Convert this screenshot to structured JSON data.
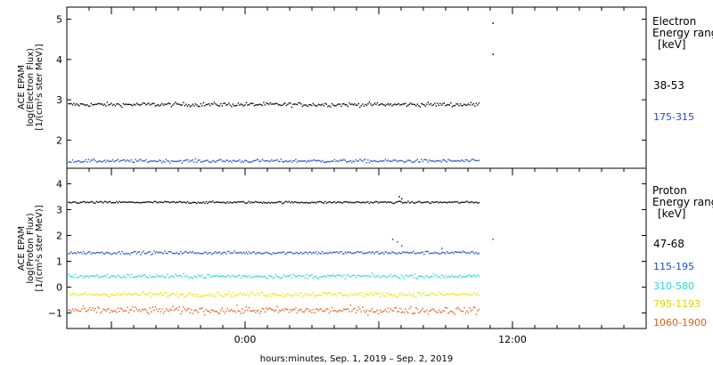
{
  "chart_data": [
    {
      "type": "scatter",
      "panel": "electron",
      "ylabel_lines": [
        "ACE EPAM",
        "log(Electron Flux)",
        "[1/(cm²s ster MeV)]"
      ],
      "ylim": [
        1.3,
        5.3
      ],
      "yticks": [
        2,
        3,
        4,
        5
      ],
      "legend_title": [
        "Electron",
        "Energy ranges",
        "[keV]"
      ],
      "series": [
        {
          "name": "38-53",
          "color": "#000000",
          "mean": 2.88,
          "noise": 0.05,
          "spikes": [
            [
              11.1,
              4.9
            ],
            [
              11.1,
              4.13
            ]
          ]
        },
        {
          "name": "175-315",
          "color": "#1f4fd0",
          "mean": 1.48,
          "noise": 0.04,
          "spikes": []
        }
      ]
    },
    {
      "type": "scatter",
      "panel": "proton",
      "ylabel_lines": [
        "ACE EPAM",
        "log(Proton Flux)",
        "[1/(cm²s ster MeV)]"
      ],
      "ylim": [
        -1.6,
        4.6
      ],
      "yticks": [
        -1,
        0,
        1,
        2,
        3,
        4
      ],
      "legend_title": [
        "Proton",
        "Energy ranges",
        "[keV]"
      ],
      "series": [
        {
          "name": "47-68",
          "color": "#000000",
          "mean": 3.28,
          "noise": 0.04,
          "spikes": [
            [
              6.9,
              3.5
            ],
            [
              7.0,
              3.42
            ]
          ]
        },
        {
          "name": "115-195",
          "color": "#1f4fd0",
          "mean": 1.33,
          "noise": 0.06,
          "spikes": [
            [
              6.6,
              1.85
            ],
            [
              6.8,
              1.75
            ],
            [
              7.0,
              1.6
            ],
            [
              11.1,
              1.85
            ],
            [
              8.8,
              1.5
            ]
          ]
        },
        {
          "name": "310-580",
          "color": "#28d8d8",
          "mean": 0.42,
          "noise": 0.08,
          "spikes": []
        },
        {
          "name": "795-1193",
          "color": "#e6e600",
          "mean": -0.28,
          "noise": 0.09,
          "spikes": []
        },
        {
          "name": "1060-1900",
          "color": "#e85a10",
          "mean": -0.9,
          "noise": 0.14,
          "spikes": []
        }
      ]
    }
  ],
  "xaxis": {
    "range_hours": [
      -8,
      18
    ],
    "data_end_hours": 10.5,
    "ticks": [
      {
        "label": "0:00",
        "hours": 0
      },
      {
        "label": "12:00",
        "hours": 12
      }
    ],
    "xlabel": "hours:minutes, Sep.  1, 2019 – Sep.  2, 2019"
  }
}
